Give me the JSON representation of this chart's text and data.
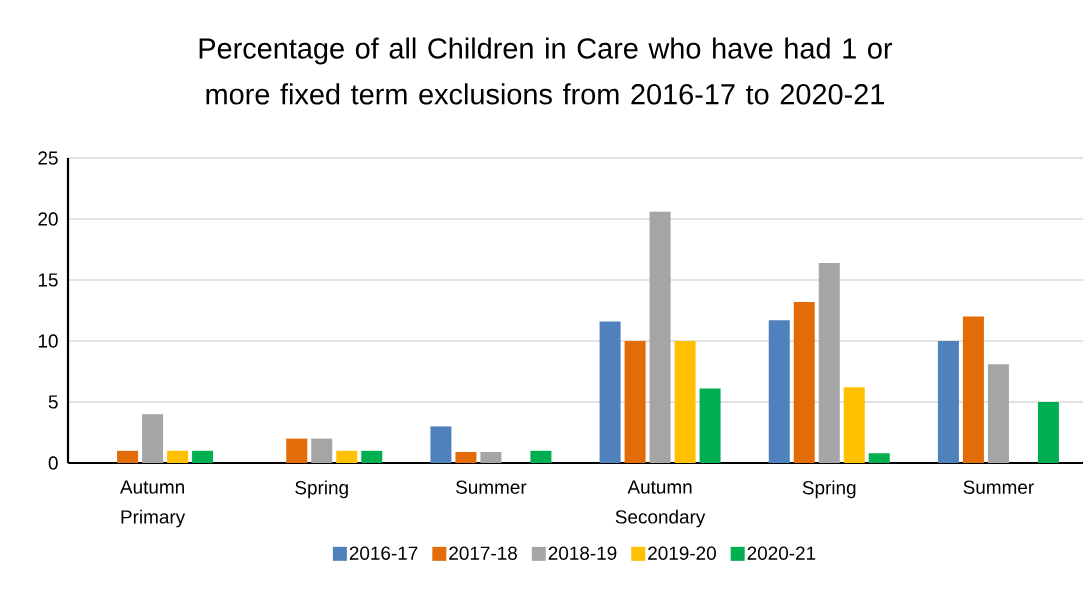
{
  "chart_data": {
    "type": "bar",
    "title": "Percentage of all Children  in Care who have had 1 or more fixed term exclusions from 2016-17 to 2020-21",
    "categories": [
      "Autumn Primary",
      "Spring",
      "Summer",
      "Autumn Secondary",
      "Spring",
      "Summer"
    ],
    "series": [
      {
        "name": "2016-17",
        "color": "#4f81bd",
        "values": [
          null,
          null,
          3.0,
          11.6,
          11.7,
          10.0
        ]
      },
      {
        "name": "2017-18",
        "color": "#e36c09",
        "values": [
          1.0,
          2.0,
          0.9,
          10.0,
          13.2,
          12.0
        ]
      },
      {
        "name": "2018-19",
        "color": "#a5a5a5",
        "values": [
          4.0,
          2.0,
          0.9,
          20.6,
          16.4,
          8.1
        ]
      },
      {
        "name": "2019-20",
        "color": "#ffc000",
        "values": [
          1.0,
          1.0,
          null,
          10.0,
          6.2,
          null
        ]
      },
      {
        "name": "2020-21",
        "color": "#00b050",
        "values": [
          1.0,
          1.0,
          1.0,
          6.1,
          0.8,
          5.0
        ]
      }
    ],
    "ylim": [
      0,
      25
    ],
    "yticks": [
      0,
      5,
      10,
      15,
      20,
      25
    ],
    "grid": "y",
    "legend": "bottom"
  }
}
